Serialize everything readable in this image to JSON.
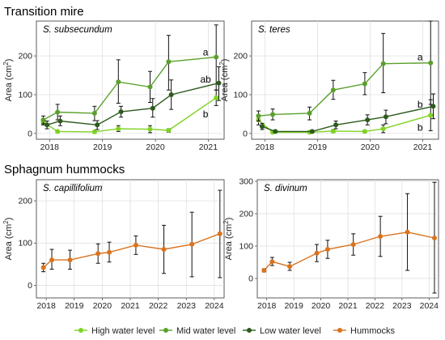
{
  "section_titles": {
    "top": "Transition mire",
    "bottom": "Sphagnum hummocks"
  },
  "colors": {
    "high": "#7ed321",
    "mid": "#5aa02c",
    "low": "#2d5a1e",
    "hummocks": "#d9731f"
  },
  "legend": [
    {
      "name": "High water level",
      "key": "high"
    },
    {
      "name": "Mid water level",
      "key": "mid"
    },
    {
      "name": "Low water level",
      "key": "low"
    },
    {
      "name": "Hummocks",
      "key": "hummocks"
    }
  ],
  "chart_data": [
    {
      "type": "line",
      "subtitle": "S. subsecundum",
      "ylabel": "Area (cm²)",
      "ylabel_parts": {
        "base": "Area (cm",
        "sup": "2",
        "end": ")"
      },
      "xticks": [
        "2018",
        "2019",
        "2020",
        "2021"
      ],
      "xtick_values": [
        2018,
        2019,
        2020,
        2021
      ],
      "yticks": [
        "0",
        "100",
        "200"
      ],
      "ytick_values": [
        0,
        100,
        200
      ],
      "xlim": [
        2017.75,
        2021.3
      ],
      "ylim": [
        -15,
        290
      ],
      "series": [
        {
          "key": "high",
          "points": [
            {
              "x": 2017.88,
              "y": 30,
              "lo": 22,
              "hi": 38
            },
            {
              "x": 2018.15,
              "y": 5,
              "lo": 2,
              "hi": 8
            },
            {
              "x": 2018.85,
              "y": 4,
              "lo": 1,
              "hi": 7
            },
            {
              "x": 2019.3,
              "y": 12,
              "lo": 5,
              "hi": 20
            },
            {
              "x": 2019.9,
              "y": 11,
              "lo": 2,
              "hi": 20
            },
            {
              "x": 2020.25,
              "y": 8,
              "lo": 3,
              "hi": 12
            },
            {
              "x": 2021.15,
              "y": 92,
              "lo": 72,
              "hi": 112
            }
          ]
        },
        {
          "key": "mid",
          "points": [
            {
              "x": 2017.88,
              "y": 35,
              "lo": 25,
              "hi": 45
            },
            {
              "x": 2018.15,
              "y": 55,
              "lo": 35,
              "hi": 75
            },
            {
              "x": 2018.85,
              "y": 52,
              "lo": 33,
              "hi": 70
            },
            {
              "x": 2019.3,
              "y": 133,
              "lo": 78,
              "hi": 190
            },
            {
              "x": 2019.9,
              "y": 120,
              "lo": 80,
              "hi": 160
            },
            {
              "x": 2020.25,
              "y": 185,
              "lo": 112,
              "hi": 253
            },
            {
              "x": 2021.15,
              "y": 197,
              "lo": 112,
              "hi": 280
            }
          ]
        },
        {
          "key": "low",
          "points": [
            {
              "x": 2017.95,
              "y": 22,
              "lo": 12,
              "hi": 32
            },
            {
              "x": 2018.2,
              "y": 32,
              "lo": 20,
              "hi": 45
            },
            {
              "x": 2018.9,
              "y": 22,
              "lo": 10,
              "hi": 33
            },
            {
              "x": 2019.35,
              "y": 56,
              "lo": 42,
              "hi": 70
            },
            {
              "x": 2019.95,
              "y": 65,
              "lo": 42,
              "hi": 90
            },
            {
              "x": 2020.3,
              "y": 100,
              "lo": 62,
              "hi": 138
            },
            {
              "x": 2021.2,
              "y": 130,
              "lo": 85,
              "hi": 172
            }
          ]
        }
      ],
      "annotations": [
        {
          "text": "a",
          "x": 2020.95,
          "y": 210
        },
        {
          "text": "ab",
          "x": 2020.95,
          "y": 140
        },
        {
          "text": "b",
          "x": 2020.95,
          "y": 50
        }
      ]
    },
    {
      "type": "line",
      "subtitle": "S. teres",
      "ylabel": "Area (cm²)",
      "ylabel_parts": {
        "base": "Area (cm",
        "sup": "2",
        "end": ")"
      },
      "xticks": [
        "2018",
        "2019",
        "2020",
        "2021"
      ],
      "xtick_values": [
        2018,
        2019,
        2020,
        2021
      ],
      "yticks": [
        "0",
        "100",
        "200"
      ],
      "ytick_values": [
        0,
        100,
        200
      ],
      "xlim": [
        2017.75,
        2021.3
      ],
      "ylim": [
        -15,
        290
      ],
      "series": [
        {
          "key": "high",
          "points": [
            {
              "x": 2017.88,
              "y": 35,
              "lo": 22,
              "hi": 48
            },
            {
              "x": 2018.15,
              "y": 3,
              "lo": 1,
              "hi": 6
            },
            {
              "x": 2018.85,
              "y": 3,
              "lo": 1,
              "hi": 6
            },
            {
              "x": 2019.3,
              "y": 6,
              "lo": 2,
              "hi": 10
            },
            {
              "x": 2019.9,
              "y": 5,
              "lo": 2,
              "hi": 8
            },
            {
              "x": 2020.25,
              "y": 12,
              "lo": 2,
              "hi": 22
            },
            {
              "x": 2021.15,
              "y": 47,
              "lo": 7,
              "hi": 87
            }
          ]
        },
        {
          "key": "mid",
          "points": [
            {
              "x": 2017.88,
              "y": 45,
              "lo": 32,
              "hi": 58
            },
            {
              "x": 2018.15,
              "y": 49,
              "lo": 35,
              "hi": 63
            },
            {
              "x": 2018.85,
              "y": 52,
              "lo": 35,
              "hi": 68
            },
            {
              "x": 2019.3,
              "y": 112,
              "lo": 88,
              "hi": 137
            },
            {
              "x": 2019.9,
              "y": 128,
              "lo": 100,
              "hi": 157
            },
            {
              "x": 2020.25,
              "y": 180,
              "lo": 105,
              "hi": 258
            },
            {
              "x": 2021.15,
              "y": 182,
              "lo": 75,
              "hi": 290
            }
          ]
        },
        {
          "key": "low",
          "points": [
            {
              "x": 2017.95,
              "y": 18,
              "lo": 10,
              "hi": 26
            },
            {
              "x": 2018.2,
              "y": 5,
              "lo": 2,
              "hi": 8
            },
            {
              "x": 2018.9,
              "y": 5,
              "lo": 2,
              "hi": 8
            },
            {
              "x": 2019.35,
              "y": 22,
              "lo": 12,
              "hi": 32
            },
            {
              "x": 2019.95,
              "y": 35,
              "lo": 22,
              "hi": 48
            },
            {
              "x": 2020.3,
              "y": 43,
              "lo": 25,
              "hi": 60
            },
            {
              "x": 2021.2,
              "y": 70,
              "lo": 38,
              "hi": 102
            }
          ]
        }
      ],
      "annotations": [
        {
          "text": "a",
          "x": 2020.95,
          "y": 197
        },
        {
          "text": "b",
          "x": 2020.95,
          "y": 75
        },
        {
          "text": "b",
          "x": 2020.95,
          "y": 15
        }
      ]
    },
    {
      "type": "line",
      "subtitle": "S. capillifolium",
      "ylabel": "Area (cm²)",
      "ylabel_parts": {
        "base": "Area (cm",
        "sup": "2",
        "end": ")"
      },
      "xticks": [
        "2018",
        "2019",
        "2020",
        "2021",
        "2022",
        "2023",
        "2024"
      ],
      "xtick_values": [
        2018,
        2019,
        2020,
        2021,
        2022,
        2023,
        2024
      ],
      "yticks": [
        "0",
        "100",
        "200"
      ],
      "ytick_values": [
        0,
        100,
        200
      ],
      "xlim": [
        2017.65,
        2024.35
      ],
      "ylim": [
        -30,
        250
      ],
      "series": [
        {
          "key": "hummocks",
          "points": [
            {
              "x": 2017.9,
              "y": 42,
              "lo": 32,
              "hi": 52
            },
            {
              "x": 2018.2,
              "y": 60,
              "lo": 38,
              "hi": 85
            },
            {
              "x": 2018.85,
              "y": 60,
              "lo": 38,
              "hi": 83
            },
            {
              "x": 2019.85,
              "y": 75,
              "lo": 52,
              "hi": 98
            },
            {
              "x": 2020.25,
              "y": 78,
              "lo": 55,
              "hi": 102
            },
            {
              "x": 2021.2,
              "y": 95,
              "lo": 73,
              "hi": 117
            },
            {
              "x": 2022.2,
              "y": 85,
              "lo": 28,
              "hi": 142
            },
            {
              "x": 2023.2,
              "y": 97,
              "lo": 20,
              "hi": 173
            },
            {
              "x": 2024.2,
              "y": 122,
              "lo": 18,
              "hi": 225
            }
          ]
        }
      ],
      "annotations": []
    },
    {
      "type": "line",
      "subtitle": "S. divinum",
      "ylabel": "Area (cm²)",
      "ylabel_parts": {
        "base": "Area (cm",
        "sup": "2",
        "end": ")"
      },
      "xticks": [
        "2018",
        "2019",
        "2020",
        "2021",
        "2022",
        "2023",
        "2024"
      ],
      "xtick_values": [
        2018,
        2019,
        2020,
        2021,
        2022,
        2023,
        2024
      ],
      "yticks": [
        "0",
        "100",
        "200",
        "300"
      ],
      "ytick_values": [
        0,
        100,
        200,
        300
      ],
      "xlim": [
        2017.65,
        2024.35
      ],
      "ylim": [
        -60,
        305
      ],
      "series": [
        {
          "key": "hummocks",
          "points": [
            {
              "x": 2017.9,
              "y": 25,
              "lo": 20,
              "hi": 30
            },
            {
              "x": 2018.2,
              "y": 52,
              "lo": 40,
              "hi": 65
            },
            {
              "x": 2018.85,
              "y": 37,
              "lo": 25,
              "hi": 50
            },
            {
              "x": 2019.85,
              "y": 78,
              "lo": 52,
              "hi": 105
            },
            {
              "x": 2020.25,
              "y": 90,
              "lo": 62,
              "hi": 118
            },
            {
              "x": 2021.2,
              "y": 105,
              "lo": 72,
              "hi": 138
            },
            {
              "x": 2022.2,
              "y": 130,
              "lo": 68,
              "hi": 192
            },
            {
              "x": 2023.2,
              "y": 143,
              "lo": 25,
              "hi": 262
            },
            {
              "x": 2024.2,
              "y": 125,
              "lo": -45,
              "hi": 297
            }
          ]
        }
      ],
      "annotations": []
    }
  ]
}
